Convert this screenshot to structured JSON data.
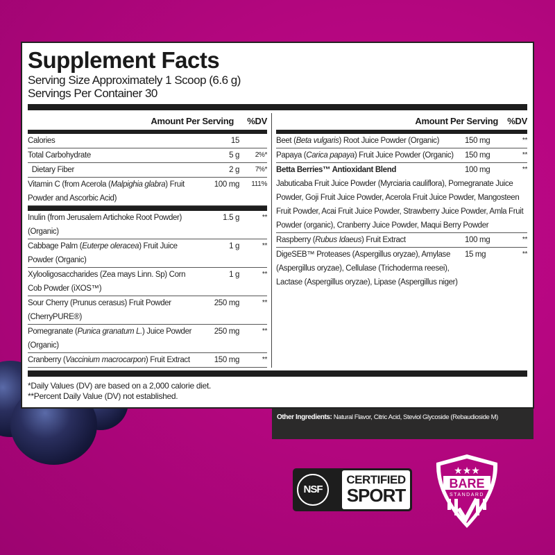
{
  "title": "Supplement Facts",
  "serving_size": "Serving Size Approximately 1 Scoop (6.6 g)",
  "servings_per_container": "Servings Per Container 30",
  "headers": {
    "amount": "Amount Per Serving",
    "dv": "%DV"
  },
  "left_rows_a": [
    {
      "name": [
        {
          "t": "Calories"
        }
      ],
      "amount": "15",
      "dv": ""
    },
    {
      "name": [
        {
          "t": "Total Carbohydrate"
        }
      ],
      "amount": "5 g",
      "dv": "2%*"
    },
    {
      "name": [
        {
          "t": "  Dietary Fiber"
        }
      ],
      "amount": "2 g",
      "dv": "7%*"
    },
    {
      "name": [
        {
          "t": "Vitamin C (from Acerola ("
        },
        {
          "t": "Malpighia glabra",
          "i": true
        },
        {
          "t": ")  Fruit Powder and Ascorbic Acid)"
        }
      ],
      "amount": "100 mg",
      "dv": "111%"
    }
  ],
  "left_rows_b": [
    {
      "name": [
        {
          "t": "Inulin (from Jerusalem Artichoke Root Powder) (Organic)"
        }
      ],
      "amount": "1.5 g",
      "dv": "**"
    },
    {
      "name": [
        {
          "t": "Cabbage Palm ("
        },
        {
          "t": "Euterpe oleracea",
          "i": true
        },
        {
          "t": ") Fruit Juice Powder (Organic)"
        }
      ],
      "amount": "1 g",
      "dv": "**"
    },
    {
      "name": [
        {
          "t": "Xylooligosaccharides (Zea mays Linn. Sp) Corn Cob Powder (iXOS™)"
        }
      ],
      "amount": "1 g",
      "dv": "**"
    },
    {
      "name": [
        {
          "t": "Sour Cherry (Prunus cerasus) Fruit Powder (CherryPURE®)"
        }
      ],
      "amount": "250 mg",
      "dv": "**"
    },
    {
      "name": [
        {
          "t": "Pomegranate ("
        },
        {
          "t": "Punica granatum L.",
          "i": true
        },
        {
          "t": ") Juice Powder (Organic)"
        }
      ],
      "amount": "250 mg",
      "dv": "**"
    },
    {
      "name": [
        {
          "t": "Cranberry ("
        },
        {
          "t": "Vaccinium macrocarpon",
          "i": true
        },
        {
          "t": ") Fruit Extract"
        }
      ],
      "amount": "150 mg",
      "dv": "**"
    }
  ],
  "right_rows": [
    {
      "name": [
        {
          "t": "Beet ("
        },
        {
          "t": "Beta vulgaris",
          "i": true
        },
        {
          "t": ") Root Juice Powder (Organic)"
        }
      ],
      "amount": "150 mg",
      "dv": "**"
    },
    {
      "name": [
        {
          "t": "Papaya ("
        },
        {
          "t": "Carica papaya",
          "i": true
        },
        {
          "t": ") Fruit Juice Powder (Organic)"
        }
      ],
      "amount": "150 mg",
      "dv": "**"
    },
    {
      "name": [
        {
          "t": "Betta Berries™ Antioxidant Blend",
          "b": true
        }
      ],
      "amount": "100 mg",
      "dv": "**",
      "nb": true,
      "blend": "Jabuticaba Fruit Juice Powder (Myrciaria cauliflora), Pomegranate Juice Powder, Goji Fruit Juice Powder, Acerola Fruit Juice Powder, Mangosteen Fruit Powder, Acai Fruit Juice Powder, Strawberry Juice Powder, Amla Fruit Powder (organic), Cranberry Juice Powder, Maqui Berry Powder"
    },
    {
      "name": [
        {
          "t": "Raspberry ("
        },
        {
          "t": "Rubus Idaeus",
          "i": true
        },
        {
          "t": ") Fruit Extract"
        }
      ],
      "amount": "100 mg",
      "dv": "**"
    },
    {
      "name": [
        {
          "t": "DigeSEB™ Proteases (Aspergillus oryzae), Amylase (Aspergillus oryzae), Cellulase (Trichoderma reesei), Lactase (Aspergillus oryzae), Lipase (Aspergillus niger)"
        }
      ],
      "amount": "15 mg",
      "dv": "**",
      "nb": true
    }
  ],
  "footnotes": [
    "*Daily Values (DV) are based on a 2,000 calorie diet.",
    "**Percent Daily Value (DV) not established."
  ],
  "other_ingredients": {
    "label": "Other Ingredients:",
    "text": " Natural Flavor, Citric Acid, Steviol Glycoside (Rebaudioside M)"
  },
  "logos": {
    "nsf": {
      "mark": "NSF",
      "line1": "CERTIFIED",
      "line2": "SPORT"
    },
    "bare": {
      "text": "BARE",
      "sub": "STANDARD"
    }
  },
  "colors": {
    "background": "#b4067f",
    "panel": "#ffffff",
    "ink": "#1e1e1e",
    "other_box": "#2b2a2a"
  }
}
